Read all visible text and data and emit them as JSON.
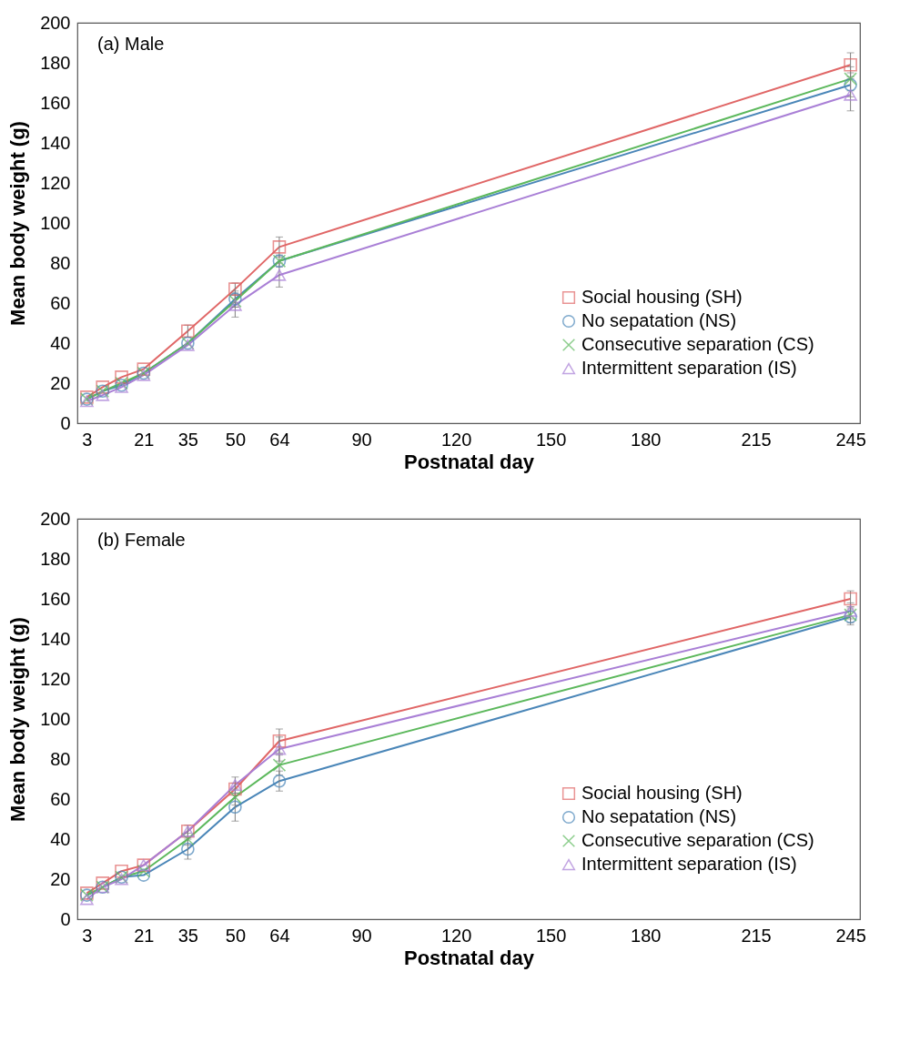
{
  "chart_data": [
    {
      "type": "line",
      "annotations": [
        "(a) Male"
      ],
      "xlabel": "Postnatal day",
      "ylabel": "Mean body weight (g)",
      "x": [
        3,
        8,
        14,
        21,
        35,
        50,
        64,
        245
      ],
      "xlim": [
        0,
        248
      ],
      "xticks": [
        3,
        21,
        35,
        50,
        64,
        90,
        120,
        150,
        180,
        215,
        245
      ],
      "ylim": [
        0,
        200
      ],
      "yticks": [
        0,
        20,
        40,
        60,
        80,
        100,
        120,
        140,
        160,
        180,
        200
      ],
      "grid": false,
      "legend": "bottom right",
      "series": [
        {
          "name": "Social housing (SH)",
          "color": "#e06666",
          "marker": "square",
          "values": [
            13,
            18,
            23,
            27,
            46,
            67,
            88,
            179
          ],
          "errors": [
            null,
            null,
            null,
            null,
            3,
            3,
            5,
            6
          ]
        },
        {
          "name": "No sepatation (NS)",
          "color": "#4a86b8",
          "marker": "circle",
          "values": [
            12,
            16,
            19,
            25,
            40,
            62,
            81,
            169
          ],
          "errors": [
            null,
            null,
            null,
            null,
            null,
            4,
            3,
            6
          ]
        },
        {
          "name": "Consecutive separation (CS)",
          "color": "#5cb85c",
          "marker": "cross",
          "values": [
            12,
            16,
            20,
            25,
            40,
            61,
            81,
            172
          ],
          "errors": [
            null,
            null,
            null,
            null,
            null,
            3,
            null,
            6
          ]
        },
        {
          "name": "Intermittent separation (IS)",
          "color": "#a97fd6",
          "marker": "triangle",
          "values": [
            11,
            14,
            18,
            24,
            39,
            59,
            74,
            164
          ],
          "errors": [
            null,
            null,
            null,
            null,
            null,
            6,
            6,
            8
          ]
        }
      ]
    },
    {
      "type": "line",
      "annotations": [
        "(b) Female"
      ],
      "xlabel": "Postnatal day",
      "ylabel": "Mean body weight (g)",
      "x": [
        3,
        8,
        14,
        21,
        35,
        50,
        64,
        245
      ],
      "xlim": [
        0,
        248
      ],
      "xticks": [
        3,
        21,
        35,
        50,
        64,
        90,
        120,
        150,
        180,
        215,
        245
      ],
      "ylim": [
        0,
        200
      ],
      "yticks": [
        0,
        20,
        40,
        60,
        80,
        100,
        120,
        140,
        160,
        180,
        200
      ],
      "grid": false,
      "legend": "bottom right",
      "series": [
        {
          "name": "Social housing (SH)",
          "color": "#e06666",
          "marker": "square",
          "values": [
            13,
            18,
            24,
            27,
            44,
            65,
            89,
            160
          ],
          "errors": [
            null,
            null,
            null,
            null,
            3,
            3,
            6,
            4
          ]
        },
        {
          "name": "No sepatation (NS)",
          "color": "#4a86b8",
          "marker": "circle",
          "values": [
            12,
            16,
            21,
            22,
            35,
            56,
            69,
            151
          ],
          "errors": [
            null,
            null,
            null,
            null,
            5,
            7,
            5,
            4
          ]
        },
        {
          "name": "Consecutive separation (CS)",
          "color": "#5cb85c",
          "marker": "cross",
          "values": [
            12,
            16,
            21,
            24,
            40,
            61,
            77,
            152
          ],
          "errors": [
            null,
            null,
            null,
            null,
            3,
            4,
            5,
            4
          ]
        },
        {
          "name": "Intermittent separation (IS)",
          "color": "#a97fd6",
          "marker": "triangle",
          "values": [
            10,
            16,
            20,
            27,
            44,
            67,
            85,
            154
          ],
          "errors": [
            null,
            null,
            null,
            null,
            null,
            4,
            6,
            4
          ]
        }
      ]
    }
  ]
}
